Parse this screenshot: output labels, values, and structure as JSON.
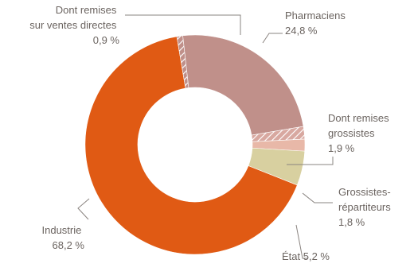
{
  "chart_data": {
    "type": "pie",
    "slices": [
      {
        "key": "industrie",
        "value": 68.2,
        "color": "#e05a14",
        "hatched": false
      },
      {
        "key": "remises_directes",
        "value": 0.9,
        "color": "#c0908a",
        "hatched": true
      },
      {
        "key": "pharmaciens",
        "value": 24.8,
        "color": "#c0908a",
        "hatched": false
      },
      {
        "key": "remises_grossistes",
        "value": 1.9,
        "color": "#d8a8a0",
        "hatched": true
      },
      {
        "key": "grossistes_repartiteurs",
        "value": 1.8,
        "color": "#e8b8a8",
        "hatched": false
      },
      {
        "key": "etat",
        "value": 5.2,
        "color": "#d8d0a0",
        "hatched": false
      }
    ],
    "hole": "donut"
  },
  "labels": {
    "dont_remises_directes": {
      "line1": "Dont remises",
      "line2": "sur ventes directes",
      "line3": "0,9 %"
    },
    "pharmaciens": {
      "line1": "Pharmaciens",
      "line2": "24,8 %"
    },
    "dont_remises_grossistes": {
      "line1": "Dont remises",
      "line2": "grossistes",
      "line3": "1,9 %"
    },
    "grossistes": {
      "line1": "Grossistes-",
      "line2": "répartiteurs",
      "line3": "1,8 %"
    },
    "etat": {
      "line1": "État 5,2 %"
    },
    "industrie": {
      "line1": "Industrie",
      "line2": "68,2 %"
    }
  }
}
